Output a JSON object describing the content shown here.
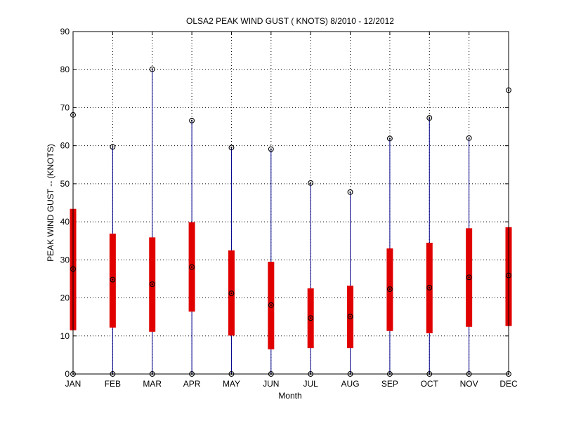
{
  "chart_data": {
    "type": "box",
    "title": "OLSA2  PEAK WIND GUST ( KNOTS) 8/2010 - 12/2012",
    "xlabel": "Month",
    "ylabel": "PEAK WIND GUST -- (KNOTS)",
    "ylim": [
      0,
      90
    ],
    "yticks": [
      "0",
      "10",
      "20",
      "30",
      "40",
      "50",
      "60",
      "70",
      "80",
      "90"
    ],
    "grid": true,
    "categories": [
      "JAN",
      "FEB",
      "MAR",
      "APR",
      "MAY",
      "JUN",
      "JUL",
      "AUG",
      "SEP",
      "OCT",
      "NOV",
      "DEC"
    ],
    "min": [
      0,
      0,
      0,
      0,
      0,
      0,
      0,
      0,
      0,
      0,
      0,
      0
    ],
    "q_low": [
      11.5,
      12.2,
      11.1,
      16.4,
      10.1,
      6.5,
      6.8,
      6.8,
      11.3,
      10.7,
      12.4,
      12.6
    ],
    "median": [
      27.6,
      24.8,
      23.6,
      28.1,
      21.2,
      18.1,
      14.7,
      15.1,
      22.3,
      22.7,
      25.4,
      25.9
    ],
    "q_high": [
      43.4,
      36.9,
      35.9,
      39.9,
      32.5,
      29.5,
      22.5,
      23.2,
      33.0,
      34.5,
      38.3,
      38.6
    ],
    "max": [
      68.1,
      59.7,
      80.1,
      66.6,
      59.5,
      59.1,
      50.2,
      47.8,
      61.9,
      67.3,
      62.0,
      74.6
    ],
    "colors": {
      "whisker": "#00008b",
      "box": "#e00000",
      "marker": "#000000",
      "grid": "#000000"
    }
  }
}
